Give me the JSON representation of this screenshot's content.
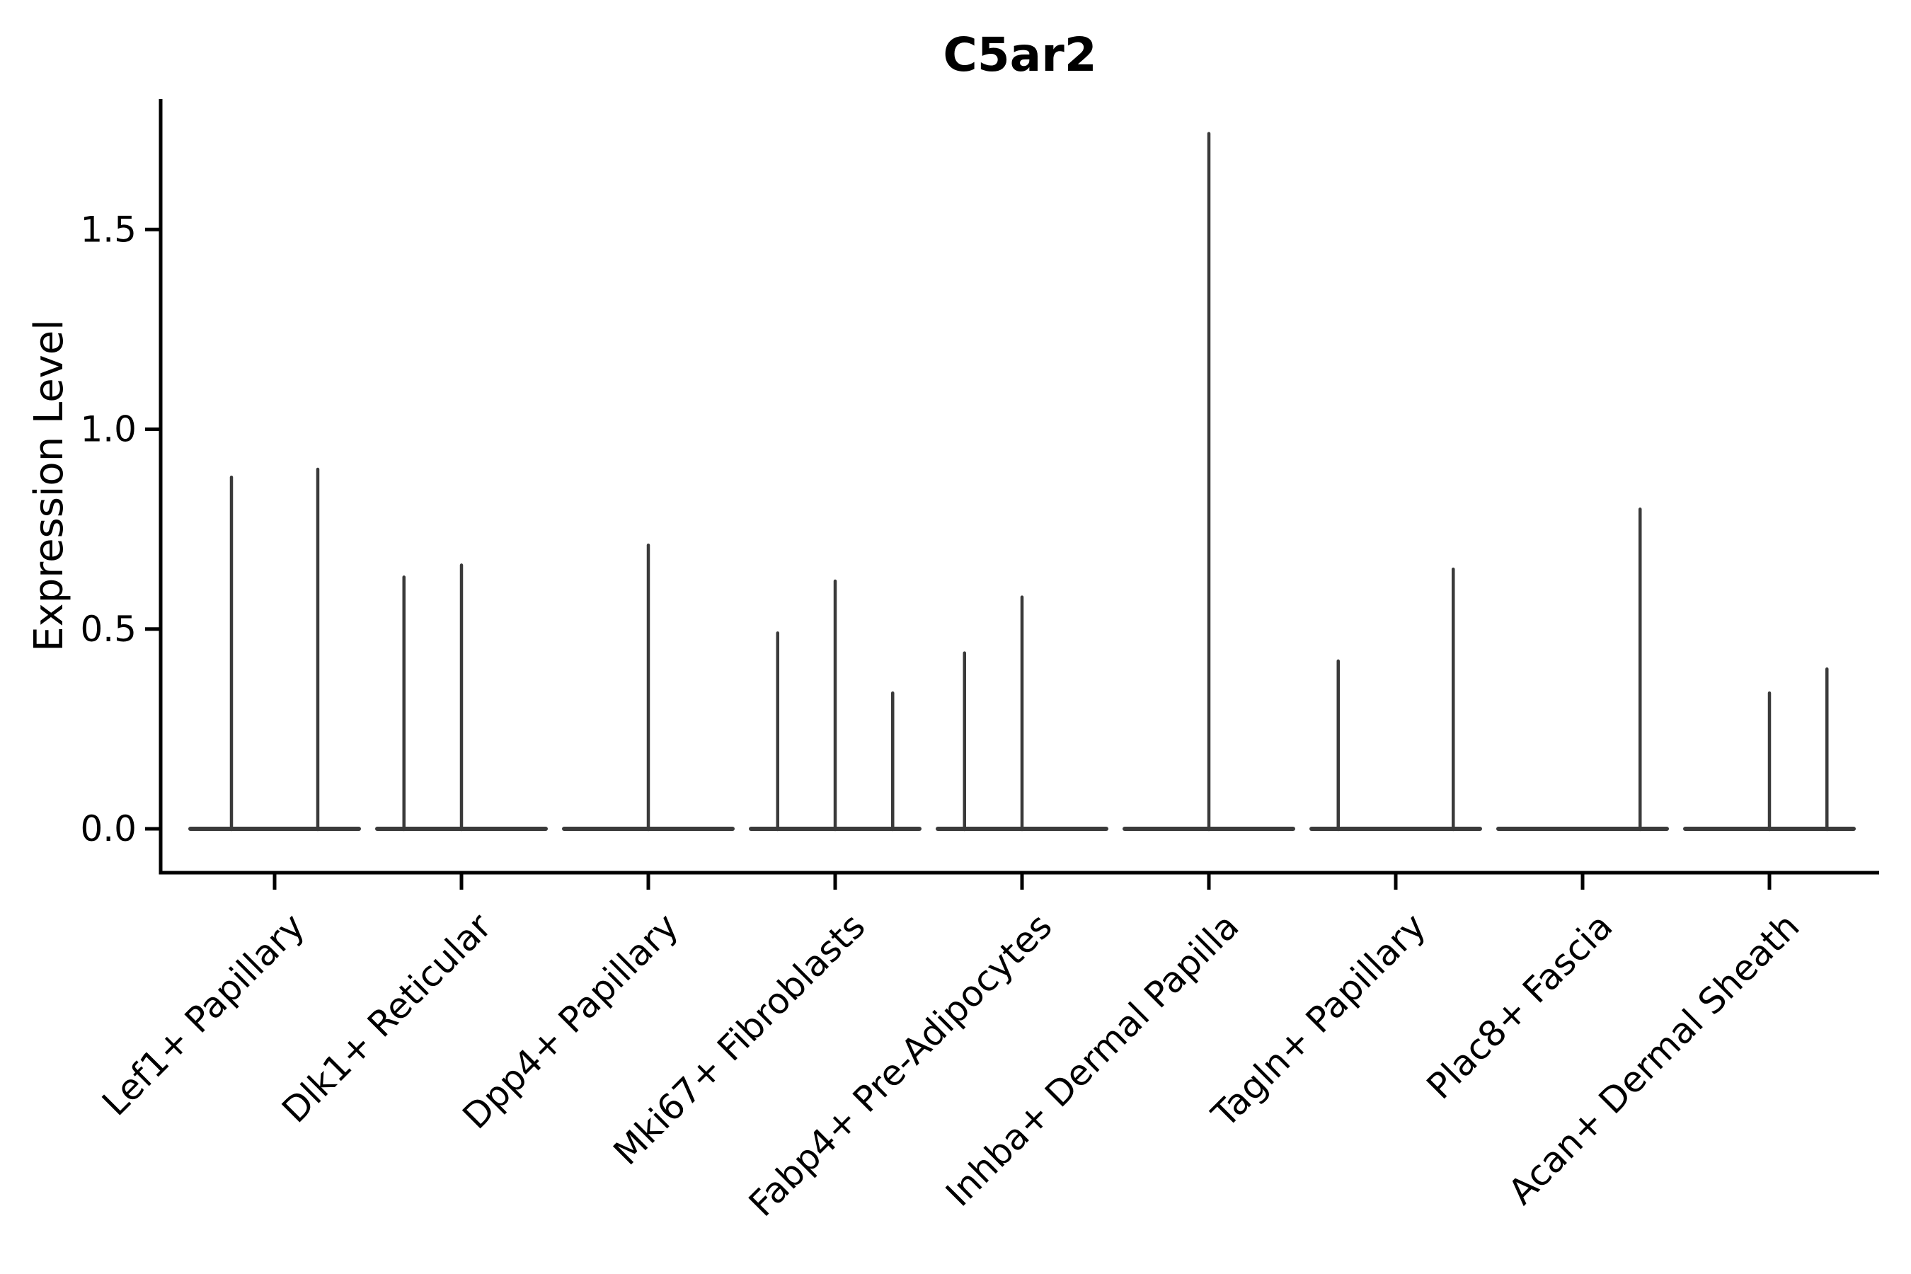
{
  "title": "C5ar2",
  "y_axis": {
    "label": "Expression Level",
    "ticks": [
      {
        "value": 0.0,
        "label": "0.0"
      },
      {
        "value": 0.5,
        "label": "0.5"
      },
      {
        "value": 1.0,
        "label": "1.0"
      },
      {
        "value": 1.5,
        "label": "1.5"
      }
    ]
  },
  "chart_data": {
    "type": "violin",
    "title": "C5ar2",
    "xlabel": "",
    "ylabel": "Expression Level",
    "categories": [
      "Lef1+ Papillary",
      "Dlk1+ Reticular",
      "Dpp4+ Papillary",
      "Mki67+ Fibroblasts",
      "Fabp4+ Pre-Adipocytes",
      "Inhba+ Dermal Papilla",
      "Tagln+ Papillary",
      "Plac8+ Fascia",
      "Acan+ Dermal Sheath"
    ],
    "y_ticks": [
      0.0,
      0.5,
      1.0,
      1.5
    ],
    "ylim": [
      0,
      1.83
    ],
    "grid": false,
    "legend": false,
    "x_tick_rotation_deg": 45,
    "colors": {
      "violin": "#3a3a3a",
      "axis": "#000000",
      "background": "#ffffff"
    },
    "groups": [
      {
        "label": "Lef1+ Papillary",
        "violins": [
          {
            "pos": 0.25,
            "max": 0.88
          },
          {
            "pos": 0.75,
            "max": 0.9
          }
        ]
      },
      {
        "label": "Dlk1+ Reticular",
        "violins": [
          {
            "pos": 0.167,
            "max": 0.63
          },
          {
            "pos": 0.5,
            "max": 0.66
          }
        ]
      },
      {
        "label": "Dpp4+ Papillary",
        "violins": [
          {
            "pos": 0.5,
            "max": 0.71
          }
        ]
      },
      {
        "label": "Mki67+ Fibroblasts",
        "violins": [
          {
            "pos": 0.167,
            "max": 0.49
          },
          {
            "pos": 0.5,
            "max": 0.62
          },
          {
            "pos": 0.833,
            "max": 0.34
          }
        ]
      },
      {
        "label": "Fabp4+ Pre-Adipocytes",
        "violins": [
          {
            "pos": 0.167,
            "max": 0.44
          },
          {
            "pos": 0.5,
            "max": 0.58
          }
        ]
      },
      {
        "label": "Inhba+ Dermal Papilla",
        "violins": [
          {
            "pos": 0.5,
            "max": 1.74
          }
        ]
      },
      {
        "label": "Tagln+ Papillary",
        "violins": [
          {
            "pos": 0.167,
            "max": 0.42
          },
          {
            "pos": 0.833,
            "max": 0.65
          }
        ]
      },
      {
        "label": "Plac8+ Fascia",
        "violins": [
          {
            "pos": 0.833,
            "max": 0.8
          }
        ]
      },
      {
        "label": "Acan+ Dermal Sheath",
        "violins": [
          {
            "pos": 0.5,
            "max": 0.34
          },
          {
            "pos": 0.833,
            "max": 0.4
          }
        ]
      }
    ]
  }
}
